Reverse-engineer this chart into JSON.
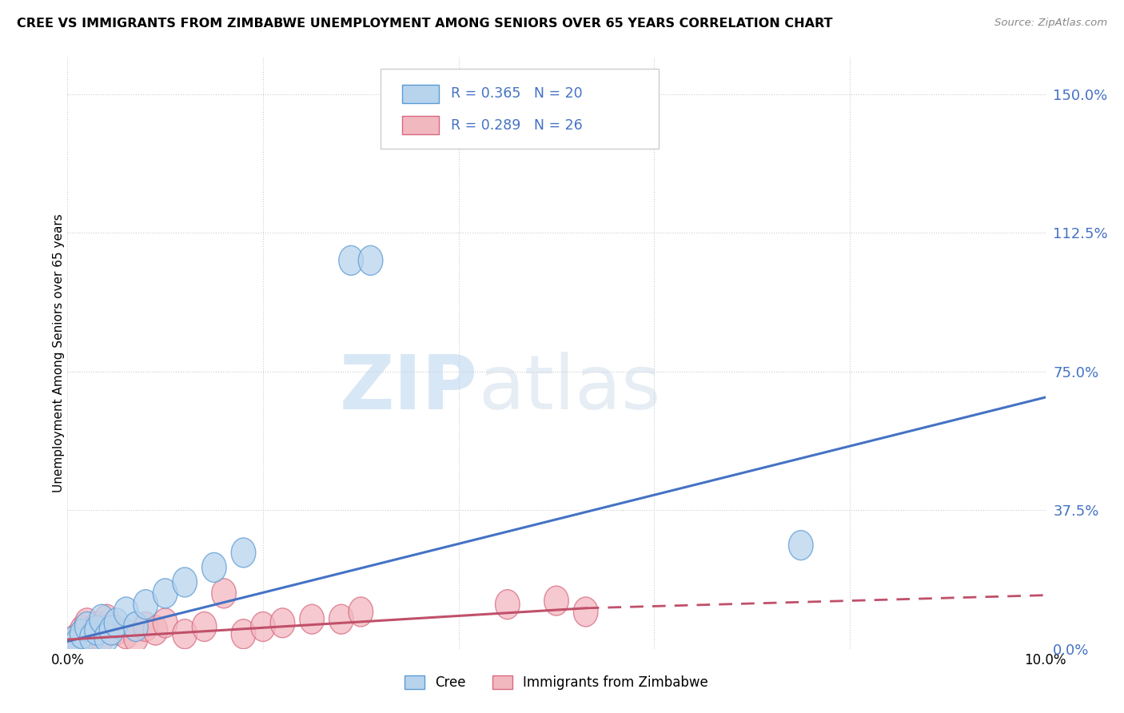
{
  "title": "CREE VS IMMIGRANTS FROM ZIMBABWE UNEMPLOYMENT AMONG SENIORS OVER 65 YEARS CORRELATION CHART",
  "source": "Source: ZipAtlas.com",
  "ylabel": "Unemployment Among Seniors over 65 years",
  "xlim": [
    0.0,
    10.0
  ],
  "ylim": [
    0.0,
    160.0
  ],
  "yticks": [
    0.0,
    37.5,
    75.0,
    112.5,
    150.0
  ],
  "xticks": [
    0.0,
    2.0,
    4.0,
    6.0,
    8.0,
    10.0
  ],
  "cree_fill_color": "#b8d4ed",
  "cree_edge_color": "#5b9bd5",
  "zimb_fill_color": "#f2b8c0",
  "zimb_edge_color": "#d96880",
  "cree_line_color": "#4472c4",
  "zimb_line_color": "#c0506a",
  "cree_R": 0.365,
  "cree_N": 20,
  "zimb_R": 0.289,
  "zimb_N": 26,
  "watermark_zip": "ZIP",
  "watermark_atlas": "atlas",
  "cree_scatter_x": [
    0.05,
    0.1,
    0.15,
    0.2,
    0.25,
    0.3,
    0.35,
    0.4,
    0.45,
    0.5,
    0.6,
    0.7,
    0.8,
    1.0,
    1.2,
    1.5,
    1.8,
    2.9,
    3.1,
    7.5
  ],
  "cree_scatter_y": [
    2.0,
    1.5,
    4.0,
    6.0,
    3.0,
    5.0,
    8.0,
    3.0,
    5.0,
    7.0,
    10.0,
    6.0,
    12.0,
    15.0,
    18.0,
    22.0,
    26.0,
    105.0,
    105.0,
    28.0
  ],
  "zimb_scatter_x": [
    0.05,
    0.1,
    0.15,
    0.2,
    0.25,
    0.3,
    0.35,
    0.4,
    0.5,
    0.6,
    0.7,
    0.8,
    0.9,
    1.0,
    1.2,
    1.4,
    1.6,
    1.8,
    2.0,
    2.2,
    2.5,
    2.8,
    3.0,
    4.5,
    5.0,
    5.3
  ],
  "zimb_scatter_y": [
    2.0,
    3.0,
    5.0,
    7.0,
    4.0,
    6.0,
    3.0,
    8.0,
    5.0,
    4.0,
    3.0,
    6.0,
    5.0,
    7.0,
    4.0,
    6.0,
    15.0,
    4.0,
    6.0,
    7.0,
    8.0,
    8.0,
    10.0,
    12.0,
    13.0,
    10.0
  ],
  "cree_line_x0": 0.0,
  "cree_line_y0": 2.0,
  "cree_line_x1": 10.0,
  "cree_line_y1": 68.0,
  "zimb_solid_x0": 0.0,
  "zimb_solid_y0": 2.5,
  "zimb_solid_x1": 5.3,
  "zimb_solid_y1": 11.0,
  "zimb_dash_x0": 5.3,
  "zimb_dash_y0": 11.0,
  "zimb_dash_x1": 10.0,
  "zimb_dash_y1": 14.5
}
